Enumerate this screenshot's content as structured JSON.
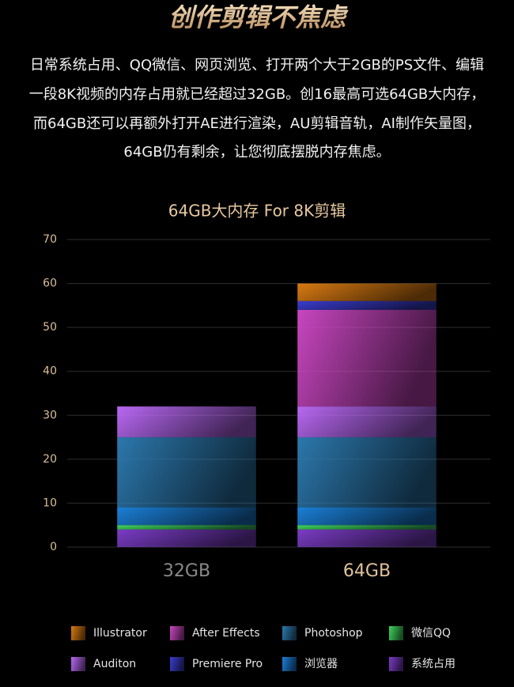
{
  "header": {
    "title": "创作剪辑不焦虑",
    "paragraph": [
      "日常系统占用、QQ微信、网页浏览、打开两个大于2GB的PS文件、编辑",
      "一段8K视频的内存占用就已经超过32GB。创16最高可选64GB大内存，",
      "而64GB还可以再额外打开AE进行渲染，AU剪辑音轨，AI制作矢量图，",
      "64GB仍有剩余，让您彻底摆脱内存焦虑。"
    ]
  },
  "chart_data": {
    "type": "stacked_bar",
    "title": "64GB大内存 For 8K剪辑",
    "categories": [
      "32GB",
      "64GB"
    ],
    "series": [
      {
        "name": "系统占用",
        "color": "#7a3cc4",
        "values": [
          4,
          4
        ]
      },
      {
        "name": "微信QQ",
        "color": "#3fd35e",
        "values": [
          1,
          1
        ]
      },
      {
        "name": "浏览器",
        "color": "#1b7fd6",
        "values": [
          4,
          4
        ]
      },
      {
        "name": "Photoshop",
        "color": "#2c78ad",
        "values": [
          16,
          16
        ]
      },
      {
        "name": "Auditon",
        "color": "#b868f2",
        "values": [
          7,
          7
        ]
      },
      {
        "name": "After Effects",
        "color": "#c846c0",
        "values": [
          null,
          22
        ]
      },
      {
        "name": "Premiere Pro",
        "color": "#3a3ccc",
        "values": [
          null,
          2
        ]
      },
      {
        "name": "Illustrator",
        "color": "#d87a12",
        "values": [
          null,
          4
        ]
      }
    ],
    "ylim": [
      0,
      70
    ],
    "yticks": [
      0,
      10,
      20,
      30,
      40,
      50,
      60,
      70
    ],
    "grid": true
  }
}
